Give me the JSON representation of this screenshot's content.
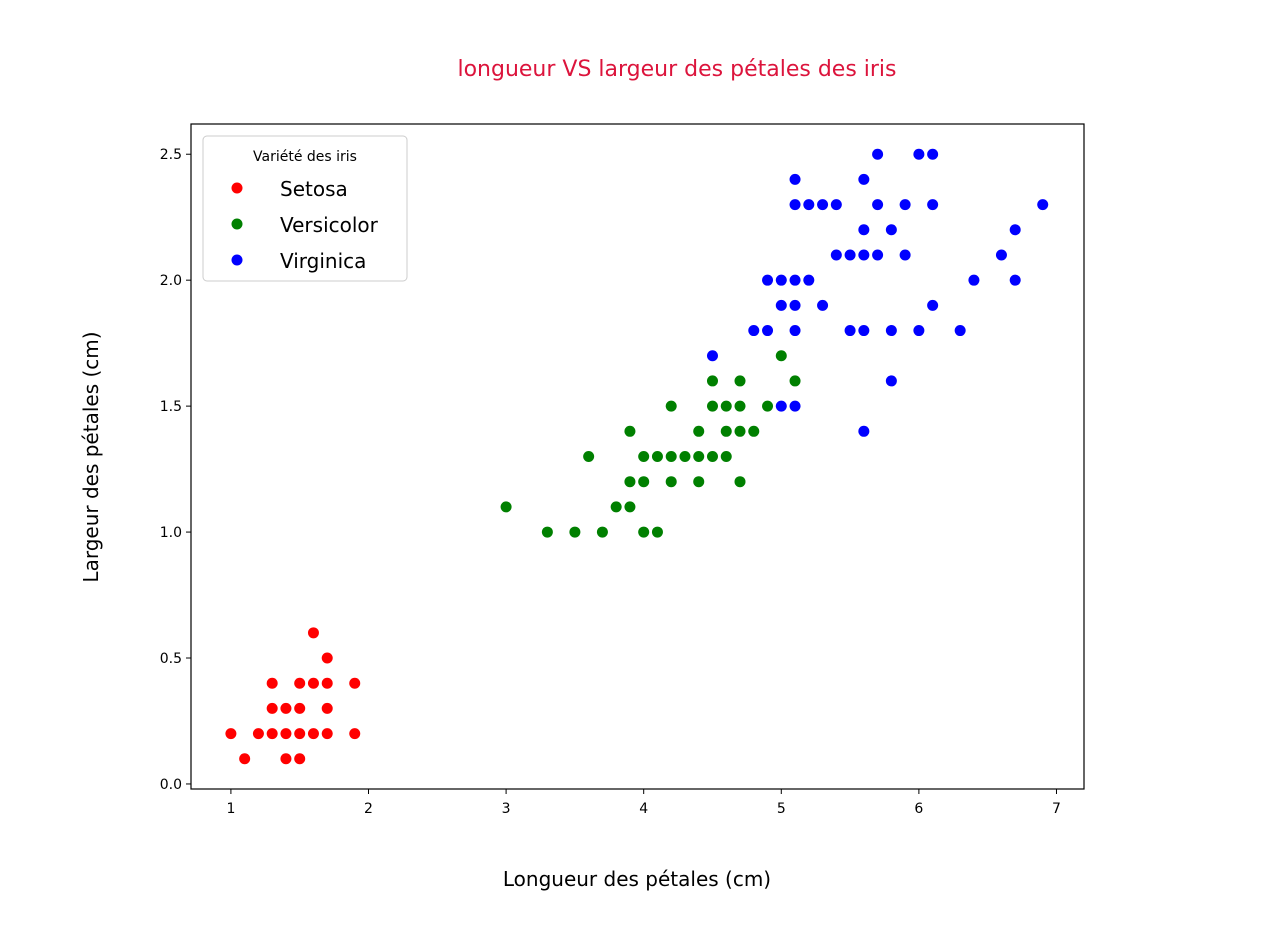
{
  "chart_data": {
    "type": "scatter",
    "title": "longueur VS largeur des pétales des iris",
    "title_color": "#dc143c",
    "xlabel": "Longueur des pétales (cm)",
    "ylabel": "Largeur des pétales (cm)",
    "xlim": [
      0.71,
      7.2
    ],
    "ylim": [
      -0.02,
      2.62
    ],
    "xticks": [
      1,
      2,
      3,
      4,
      5,
      6,
      7
    ],
    "yticks": [
      "0.0",
      "0.5",
      "1.0",
      "1.5",
      "2.0",
      "2.5"
    ],
    "grid": false,
    "legend": {
      "title": "Variété des iris",
      "placement": "top-left"
    },
    "series": [
      {
        "name": "Setosa",
        "color": "#ff0000",
        "points": [
          [
            1.0,
            0.2
          ],
          [
            1.1,
            0.1
          ],
          [
            1.2,
            0.2
          ],
          [
            1.3,
            0.2
          ],
          [
            1.3,
            0.3
          ],
          [
            1.3,
            0.4
          ],
          [
            1.4,
            0.1
          ],
          [
            1.4,
            0.2
          ],
          [
            1.4,
            0.3
          ],
          [
            1.5,
            0.1
          ],
          [
            1.5,
            0.2
          ],
          [
            1.5,
            0.3
          ],
          [
            1.5,
            0.4
          ],
          [
            1.6,
            0.2
          ],
          [
            1.6,
            0.4
          ],
          [
            1.6,
            0.6
          ],
          [
            1.7,
            0.2
          ],
          [
            1.7,
            0.3
          ],
          [
            1.7,
            0.4
          ],
          [
            1.7,
            0.5
          ],
          [
            1.9,
            0.2
          ],
          [
            1.9,
            0.4
          ]
        ]
      },
      {
        "name": "Versicolor",
        "color": "#008000",
        "points": [
          [
            3.0,
            1.1
          ],
          [
            3.3,
            1.0
          ],
          [
            3.5,
            1.0
          ],
          [
            3.6,
            1.3
          ],
          [
            3.7,
            1.0
          ],
          [
            3.8,
            1.1
          ],
          [
            3.9,
            1.1
          ],
          [
            3.9,
            1.2
          ],
          [
            3.9,
            1.4
          ],
          [
            4.0,
            1.0
          ],
          [
            4.0,
            1.2
          ],
          [
            4.0,
            1.3
          ],
          [
            4.1,
            1.0
          ],
          [
            4.1,
            1.3
          ],
          [
            4.2,
            1.2
          ],
          [
            4.2,
            1.3
          ],
          [
            4.2,
            1.5
          ],
          [
            4.3,
            1.3
          ],
          [
            4.4,
            1.2
          ],
          [
            4.4,
            1.3
          ],
          [
            4.4,
            1.4
          ],
          [
            4.5,
            1.3
          ],
          [
            4.5,
            1.5
          ],
          [
            4.5,
            1.6
          ],
          [
            4.6,
            1.3
          ],
          [
            4.6,
            1.4
          ],
          [
            4.6,
            1.5
          ],
          [
            4.7,
            1.2
          ],
          [
            4.7,
            1.4
          ],
          [
            4.7,
            1.5
          ],
          [
            4.7,
            1.6
          ],
          [
            4.8,
            1.4
          ],
          [
            4.9,
            1.5
          ],
          [
            5.0,
            1.7
          ],
          [
            5.1,
            1.6
          ]
        ]
      },
      {
        "name": "Virginica",
        "color": "#0000ff",
        "points": [
          [
            4.5,
            1.7
          ],
          [
            4.8,
            1.8
          ],
          [
            4.9,
            1.8
          ],
          [
            4.9,
            2.0
          ],
          [
            5.0,
            1.5
          ],
          [
            5.0,
            1.9
          ],
          [
            5.0,
            2.0
          ],
          [
            5.1,
            1.5
          ],
          [
            5.1,
            1.8
          ],
          [
            5.1,
            1.9
          ],
          [
            5.1,
            2.0
          ],
          [
            5.1,
            2.3
          ],
          [
            5.1,
            2.4
          ],
          [
            5.2,
            2.0
          ],
          [
            5.2,
            2.3
          ],
          [
            5.3,
            1.9
          ],
          [
            5.3,
            2.3
          ],
          [
            5.4,
            2.1
          ],
          [
            5.4,
            2.3
          ],
          [
            5.5,
            1.8
          ],
          [
            5.5,
            2.1
          ],
          [
            5.6,
            1.4
          ],
          [
            5.6,
            1.8
          ],
          [
            5.6,
            2.1
          ],
          [
            5.6,
            2.2
          ],
          [
            5.6,
            2.4
          ],
          [
            5.7,
            2.1
          ],
          [
            5.7,
            2.3
          ],
          [
            5.7,
            2.5
          ],
          [
            5.8,
            1.6
          ],
          [
            5.8,
            1.8
          ],
          [
            5.8,
            2.2
          ],
          [
            5.9,
            2.1
          ],
          [
            5.9,
            2.3
          ],
          [
            6.0,
            1.8
          ],
          [
            6.0,
            2.5
          ],
          [
            6.1,
            1.9
          ],
          [
            6.1,
            2.3
          ],
          [
            6.1,
            2.5
          ],
          [
            6.3,
            1.8
          ],
          [
            6.4,
            2.0
          ],
          [
            6.6,
            2.1
          ],
          [
            6.7,
            2.0
          ],
          [
            6.7,
            2.2
          ],
          [
            6.9,
            2.3
          ]
        ]
      }
    ]
  }
}
